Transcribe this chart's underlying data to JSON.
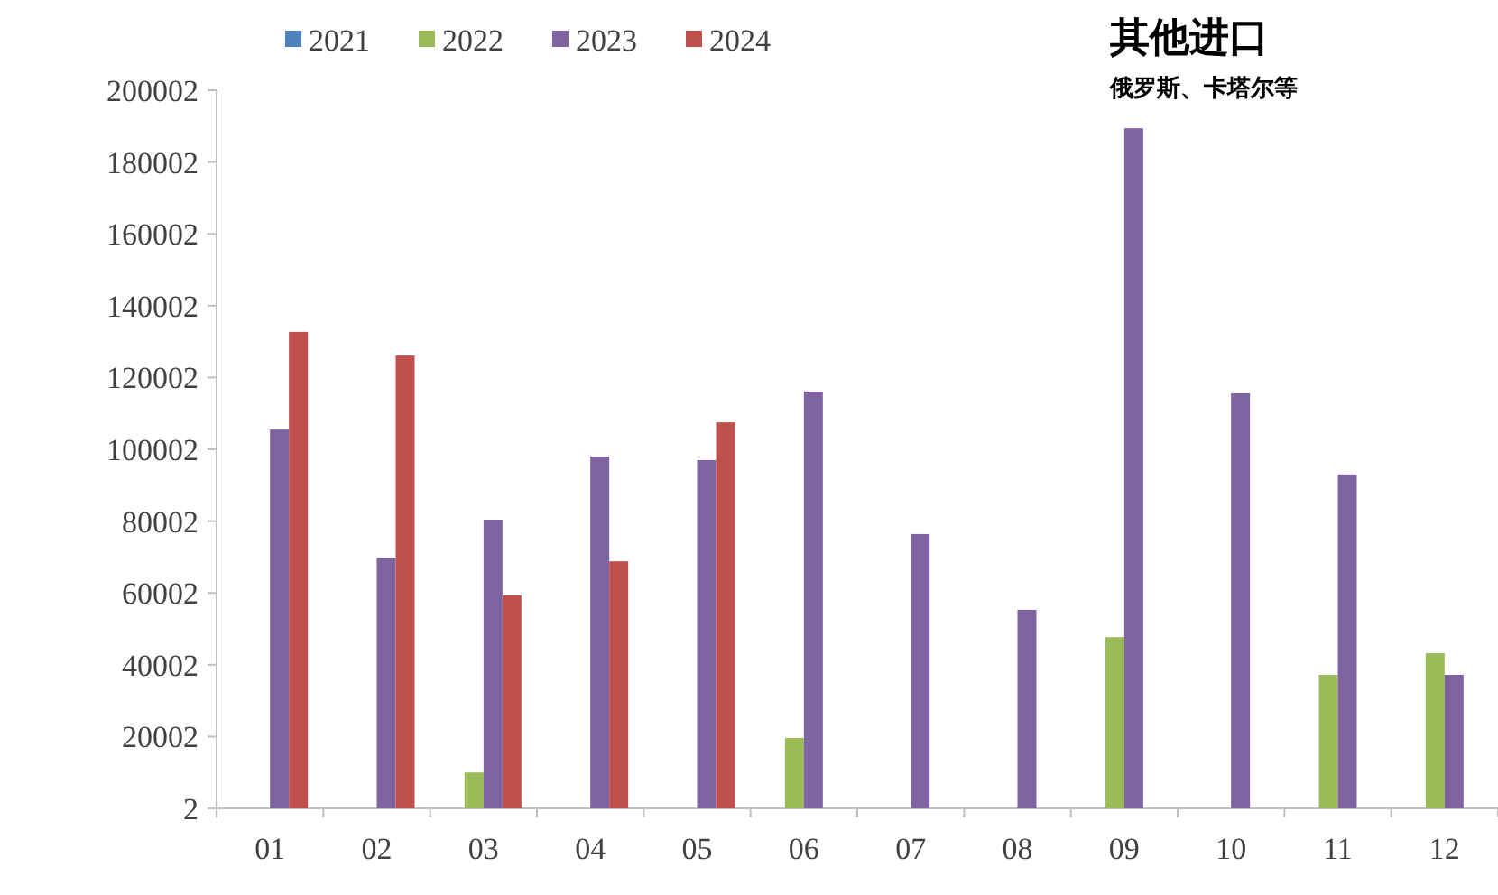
{
  "chart_data": {
    "type": "bar",
    "title": "其他进口",
    "subtitle": "俄罗斯、卡塔尔等",
    "categories": [
      "01",
      "02",
      "03",
      "04",
      "05",
      "06",
      "07",
      "08",
      "09",
      "10",
      "11",
      "12"
    ],
    "series": [
      {
        "name": "2021",
        "color": "#4f81bd",
        "values": [
          null,
          null,
          null,
          null,
          null,
          null,
          null,
          null,
          null,
          null,
          null,
          null
        ]
      },
      {
        "name": "2022",
        "color": "#9bbb59",
        "values": [
          null,
          null,
          10000,
          null,
          null,
          19600,
          null,
          null,
          47700,
          null,
          37200,
          43200
        ]
      },
      {
        "name": "2023",
        "color": "#8064a2",
        "values": [
          105500,
          69800,
          80400,
          98000,
          97000,
          116100,
          76400,
          55300,
          189400,
          115600,
          93000,
          37200
        ]
      },
      {
        "name": "2024",
        "color": "#c0504d",
        "values": [
          132700,
          126100,
          59300,
          68800,
          107500,
          null,
          null,
          null,
          null,
          null,
          null,
          null
        ]
      }
    ],
    "ylim": [
      2,
      200002
    ],
    "yticks": [
      2,
      20002,
      40002,
      60002,
      80002,
      100002,
      120002,
      140002,
      160002,
      180002,
      200002
    ],
    "grid": false,
    "legend": "top left"
  }
}
